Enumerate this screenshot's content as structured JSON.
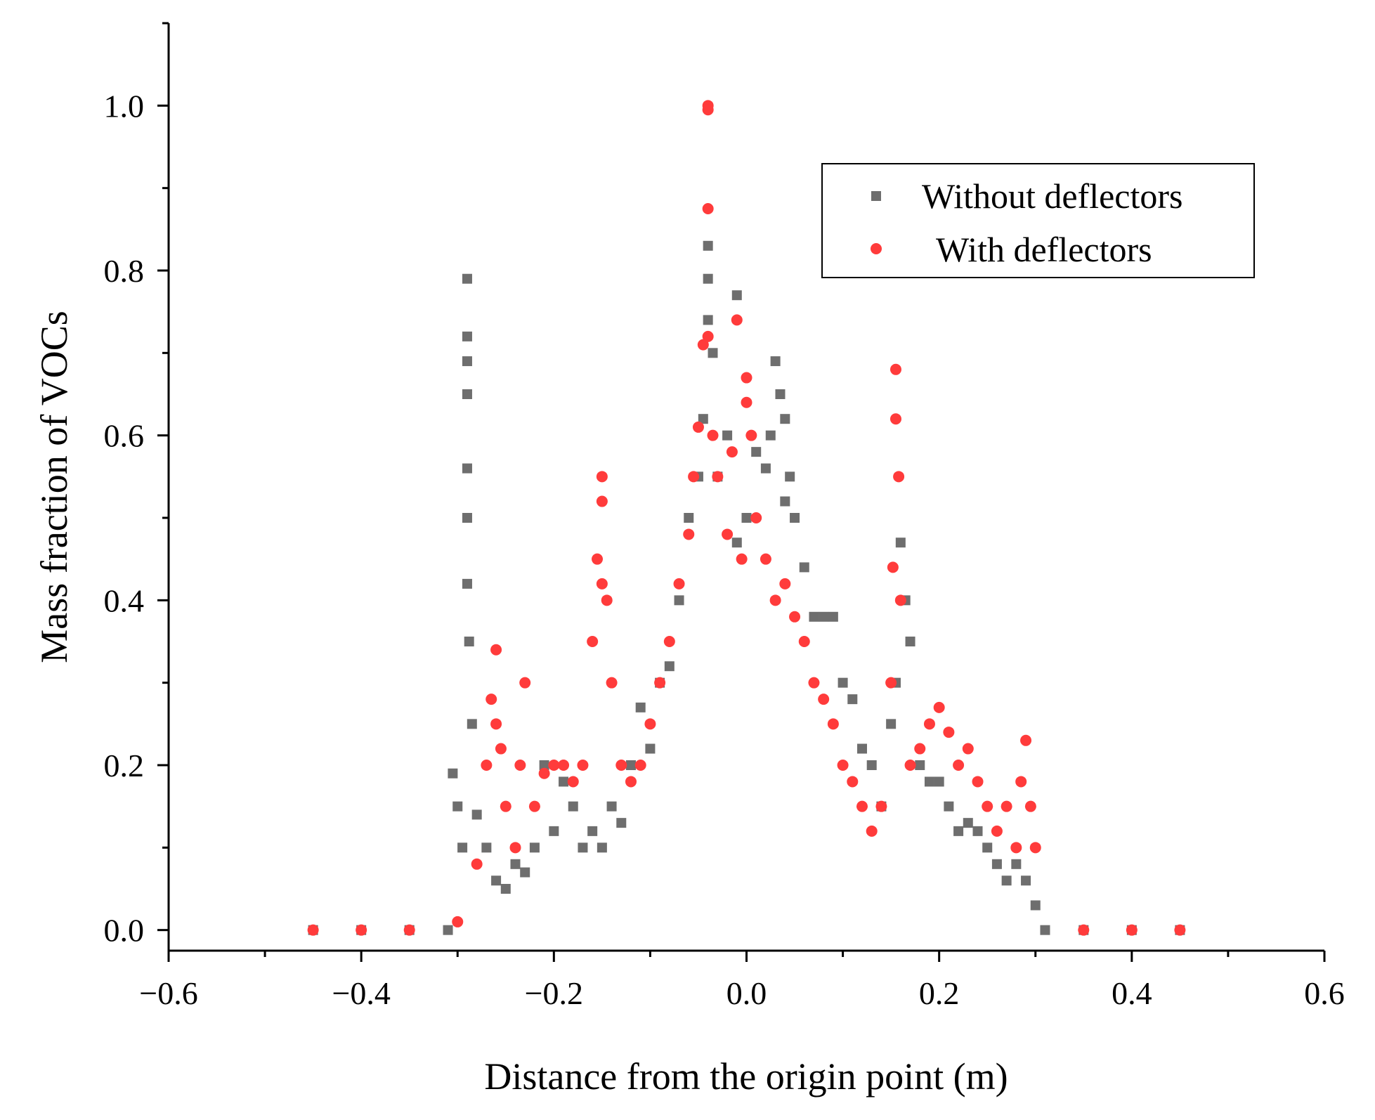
{
  "chart_data": {
    "type": "scatter",
    "title": "",
    "xlabel": "Distance from the origin point (m)",
    "ylabel": "Mass fraction of VOCs",
    "xlim": [
      -0.6,
      0.6
    ],
    "ylim": [
      -0.025,
      1.1
    ],
    "xticks": [
      -0.6,
      -0.4,
      -0.2,
      0.0,
      0.2,
      0.4,
      0.6
    ],
    "xtick_labels": [
      "−0.6",
      "−0.4",
      "−0.2",
      "0.0",
      "0.2",
      "0.4",
      "0.6"
    ],
    "yticks": [
      0.0,
      0.2,
      0.4,
      0.6,
      0.8,
      1.0
    ],
    "ytick_labels": [
      "0.0",
      "0.2",
      "0.4",
      "0.6",
      "0.8",
      "1.0"
    ],
    "legend_position": "top-right",
    "series": [
      {
        "name": "Without deflectors",
        "marker": "square",
        "color": "#6e6e6e",
        "x": [
          -0.45,
          -0.4,
          -0.35,
          -0.31,
          -0.305,
          -0.3,
          -0.295,
          -0.29,
          -0.29,
          -0.29,
          -0.29,
          -0.29,
          -0.29,
          -0.29,
          -0.288,
          -0.285,
          -0.28,
          -0.27,
          -0.26,
          -0.25,
          -0.24,
          -0.23,
          -0.22,
          -0.21,
          -0.2,
          -0.19,
          -0.18,
          -0.17,
          -0.16,
          -0.15,
          -0.14,
          -0.13,
          -0.12,
          -0.11,
          -0.1,
          -0.09,
          -0.08,
          -0.07,
          -0.06,
          -0.05,
          -0.045,
          -0.04,
          -0.04,
          -0.04,
          -0.035,
          -0.03,
          -0.02,
          -0.01,
          -0.01,
          0.0,
          0.01,
          0.02,
          0.025,
          0.03,
          0.035,
          0.04,
          0.04,
          0.045,
          0.05,
          0.06,
          0.07,
          0.08,
          0.09,
          0.1,
          0.11,
          0.12,
          0.13,
          0.14,
          0.15,
          0.155,
          0.16,
          0.165,
          0.17,
          0.18,
          0.19,
          0.2,
          0.21,
          0.22,
          0.23,
          0.24,
          0.25,
          0.26,
          0.27,
          0.28,
          0.29,
          0.3,
          0.31,
          0.35,
          0.4,
          0.45
        ],
        "y": [
          0.0,
          0.0,
          0.0,
          0.0,
          0.19,
          0.15,
          0.1,
          0.79,
          0.72,
          0.69,
          0.65,
          0.56,
          0.5,
          0.42,
          0.35,
          0.25,
          0.14,
          0.1,
          0.06,
          0.05,
          0.08,
          0.07,
          0.1,
          0.2,
          0.12,
          0.18,
          0.15,
          0.1,
          0.12,
          0.1,
          0.15,
          0.13,
          0.2,
          0.27,
          0.22,
          0.3,
          0.32,
          0.4,
          0.5,
          0.55,
          0.62,
          0.83,
          0.79,
          0.74,
          0.7,
          0.55,
          0.6,
          0.77,
          0.47,
          0.5,
          0.58,
          0.56,
          0.6,
          0.69,
          0.65,
          0.62,
          0.52,
          0.55,
          0.5,
          0.44,
          0.38,
          0.38,
          0.38,
          0.3,
          0.28,
          0.22,
          0.2,
          0.15,
          0.25,
          0.3,
          0.47,
          0.4,
          0.35,
          0.2,
          0.18,
          0.18,
          0.15,
          0.12,
          0.13,
          0.12,
          0.1,
          0.08,
          0.06,
          0.08,
          0.06,
          0.03,
          0.0,
          0.0,
          0.0,
          0.0
        ]
      },
      {
        "name": "With deflectors",
        "marker": "circle",
        "color": "#ff3b3b",
        "x": [
          -0.45,
          -0.4,
          -0.35,
          -0.3,
          -0.28,
          -0.27,
          -0.265,
          -0.26,
          -0.26,
          -0.255,
          -0.25,
          -0.24,
          -0.235,
          -0.23,
          -0.22,
          -0.21,
          -0.2,
          -0.19,
          -0.18,
          -0.17,
          -0.16,
          -0.155,
          -0.15,
          -0.15,
          -0.15,
          -0.145,
          -0.14,
          -0.13,
          -0.12,
          -0.11,
          -0.1,
          -0.09,
          -0.08,
          -0.07,
          -0.06,
          -0.055,
          -0.05,
          -0.045,
          -0.04,
          -0.04,
          -0.04,
          -0.04,
          -0.035,
          -0.03,
          -0.02,
          -0.015,
          -0.01,
          -0.005,
          0.0,
          0.0,
          0.005,
          0.01,
          0.02,
          0.03,
          0.04,
          0.05,
          0.06,
          0.07,
          0.08,
          0.09,
          0.1,
          0.11,
          0.12,
          0.13,
          0.14,
          0.15,
          0.152,
          0.155,
          0.155,
          0.158,
          0.16,
          0.17,
          0.18,
          0.19,
          0.2,
          0.21,
          0.22,
          0.23,
          0.24,
          0.25,
          0.26,
          0.27,
          0.28,
          0.285,
          0.29,
          0.295,
          0.3,
          0.35,
          0.4,
          0.45
        ],
        "y": [
          0.0,
          0.0,
          0.0,
          0.01,
          0.08,
          0.2,
          0.28,
          0.34,
          0.25,
          0.22,
          0.15,
          0.1,
          0.2,
          0.3,
          0.15,
          0.19,
          0.2,
          0.2,
          0.18,
          0.2,
          0.35,
          0.45,
          0.55,
          0.52,
          0.42,
          0.4,
          0.3,
          0.2,
          0.18,
          0.2,
          0.25,
          0.3,
          0.35,
          0.42,
          0.48,
          0.55,
          0.61,
          0.71,
          1.0,
          0.995,
          0.875,
          0.72,
          0.6,
          0.55,
          0.48,
          0.58,
          0.74,
          0.45,
          0.67,
          0.64,
          0.6,
          0.5,
          0.45,
          0.4,
          0.42,
          0.38,
          0.35,
          0.3,
          0.28,
          0.25,
          0.2,
          0.18,
          0.15,
          0.12,
          0.15,
          0.3,
          0.44,
          0.68,
          0.62,
          0.55,
          0.4,
          0.2,
          0.22,
          0.25,
          0.27,
          0.24,
          0.2,
          0.22,
          0.18,
          0.15,
          0.12,
          0.15,
          0.1,
          0.18,
          0.23,
          0.15,
          0.1,
          0.0,
          0.0,
          0.0
        ]
      }
    ]
  }
}
